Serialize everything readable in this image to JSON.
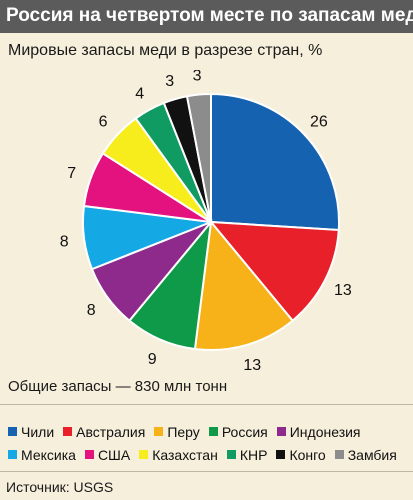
{
  "header": {
    "title": "Россия на четвертом месте по запасам меди",
    "subtitle": "Мировые запасы меди в разрезе стран, %"
  },
  "total_text": "Общие запасы — 830 млн тонн",
  "source_text": "Источник: USGS",
  "chart_data": {
    "type": "pie",
    "title": "Мировые запасы меди в разрезе стран, %",
    "unit": "%",
    "legend_placement": "bottom",
    "slices": [
      {
        "label": "Чили",
        "value": 26,
        "color": "#1462b0"
      },
      {
        "label": "Австралия",
        "value": 13,
        "color": "#e8202a"
      },
      {
        "label": "Перу",
        "value": 13,
        "color": "#f7b21a"
      },
      {
        "label": "Россия",
        "value": 9,
        "color": "#0e9a48"
      },
      {
        "label": "Индонезия",
        "value": 8,
        "color": "#8e2a8c"
      },
      {
        "label": "Мексика",
        "value": 8,
        "color": "#14a9e4"
      },
      {
        "label": "США",
        "value": 7,
        "color": "#e4127f"
      },
      {
        "label": "Казахстан",
        "value": 6,
        "color": "#f7ed1c"
      },
      {
        "label": "КНР",
        "value": 4,
        "color": "#0f9b62"
      },
      {
        "label": "Конго",
        "value": 3,
        "color": "#111111"
      },
      {
        "label": "Замбия",
        "value": 3,
        "color": "#8c8c8c"
      }
    ]
  }
}
